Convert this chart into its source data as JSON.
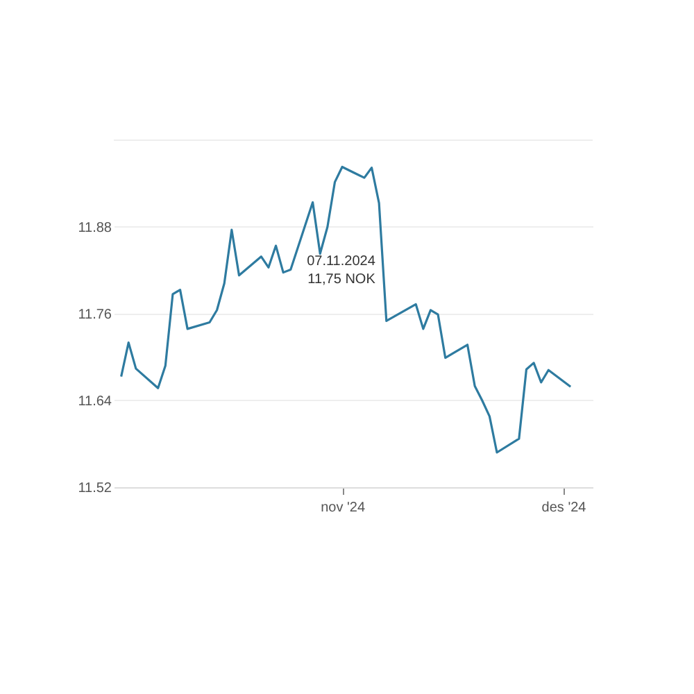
{
  "chart_data": {
    "type": "line",
    "x": [
      "2024-10-02",
      "2024-10-03",
      "2024-10-04",
      "2024-10-07",
      "2024-10-08",
      "2024-10-09",
      "2024-10-10",
      "2024-10-11",
      "2024-10-14",
      "2024-10-15",
      "2024-10-16",
      "2024-10-17",
      "2024-10-18",
      "2024-10-21",
      "2024-10-22",
      "2024-10-23",
      "2024-10-24",
      "2024-10-25",
      "2024-10-28",
      "2024-10-29",
      "2024-10-30",
      "2024-10-31",
      "2024-11-01",
      "2024-11-04",
      "2024-11-05",
      "2024-11-06",
      "2024-11-07",
      "2024-11-11",
      "2024-11-12",
      "2024-11-13",
      "2024-11-14",
      "2024-11-15",
      "2024-11-18",
      "2024-11-19",
      "2024-11-20",
      "2024-11-21",
      "2024-11-22",
      "2024-11-25",
      "2024-11-26",
      "2024-11-27",
      "2024-11-28",
      "2024-11-29",
      "2024-12-02"
    ],
    "series": [
      {
        "color": "#2e7ba0",
        "values": [
          11.673,
          11.72,
          11.684,
          11.657,
          11.688,
          11.787,
          11.793,
          11.739,
          11.748,
          11.765,
          11.802,
          11.876,
          11.813,
          11.839,
          11.824,
          11.854,
          11.817,
          11.821,
          11.914,
          11.843,
          11.88,
          11.942,
          11.963,
          11.948,
          11.962,
          11.913,
          11.75,
          11.773,
          11.739,
          11.765,
          11.759,
          11.699,
          11.717,
          11.66,
          11.64,
          11.618,
          11.568,
          11.587,
          11.683,
          11.692,
          11.665,
          11.682,
          11.659
        ]
      }
    ],
    "xlim": [
      "2024-10-01",
      "2024-12-05"
    ],
    "xticks": [
      {
        "value": "2024-11-01",
        "label": "nov '24"
      },
      {
        "value": "2024-12-01",
        "label": "des '24"
      }
    ],
    "ylim": [
      11.52,
      12.0
    ],
    "yticks": [
      11.52,
      11.64,
      11.76,
      11.88,
      {
        "value": 12.0,
        "label": null
      }
    ],
    "grid": "y",
    "marker": "none",
    "line_style": "solid",
    "annotations": [
      {
        "text": "07.11.2024\n11,75 NOK",
        "x": "2024-11-07",
        "y": 11.75
      }
    ]
  }
}
